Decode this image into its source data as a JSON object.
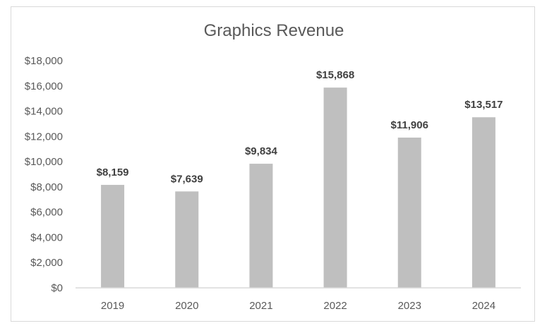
{
  "chart_data": {
    "type": "bar",
    "title": "Graphics Revenue",
    "categories": [
      "2019",
      "2020",
      "2021",
      "2022",
      "2023",
      "2024"
    ],
    "values": [
      8159,
      7639,
      9834,
      15868,
      11906,
      13517
    ],
    "data_labels": [
      "$8,159",
      "$7,639",
      "$9,834",
      "$15,868",
      "$11,906",
      "$13,517"
    ],
    "y_ticks": [
      0,
      2000,
      4000,
      6000,
      8000,
      10000,
      12000,
      14000,
      16000,
      18000
    ],
    "y_tick_labels": [
      "$0",
      "$2,000",
      "$4,000",
      "$6,000",
      "$8,000",
      "$10,000",
      "$12,000",
      "$14,000",
      "$16,000",
      "$18,000"
    ],
    "ylim": [
      0,
      18000
    ],
    "xlabel": "",
    "ylabel": "",
    "grid": false,
    "legend": "none",
    "bar_color": "#bfbfbf"
  }
}
